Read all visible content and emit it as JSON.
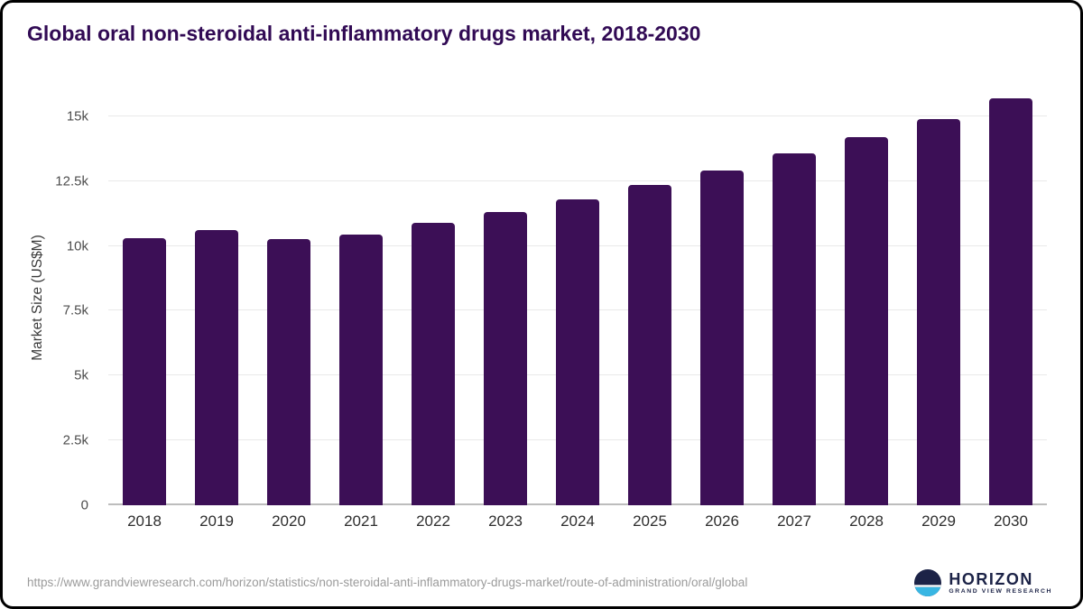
{
  "title": "Global oral non-steroidal anti-inflammatory drugs market, 2018-2030",
  "chart_data": {
    "type": "bar",
    "categories": [
      "2018",
      "2019",
      "2020",
      "2021",
      "2022",
      "2023",
      "2024",
      "2025",
      "2026",
      "2027",
      "2028",
      "2029",
      "2030"
    ],
    "values": [
      10300,
      10600,
      10250,
      10450,
      10900,
      11300,
      11800,
      12350,
      12900,
      13550,
      14200,
      14900,
      15700
    ],
    "title": "Global oral non-steroidal anti-inflammatory drugs market, 2018-2030",
    "xlabel": "",
    "ylabel": "Market Size (US$M)",
    "ylim": [
      0,
      16000
    ],
    "yticks": [
      0,
      2500,
      5000,
      7500,
      10000,
      12500,
      15000
    ],
    "ytick_labels": [
      "0",
      "2.5k",
      "5k",
      "7.5k",
      "10k",
      "12.5k",
      "15k"
    ],
    "bar_color": "#3c0f56",
    "grid": true,
    "legend": "none"
  },
  "footer": {
    "source_url": "https://www.grandviewresearch.com/horizon/statistics/non-steroidal-anti-inflammatory-drugs-market/route-of-administration/oral/global",
    "logo": {
      "name": "HORIZON",
      "subtitle": "GRAND VIEW RESEARCH"
    }
  },
  "colors": {
    "bar": "#3c0f56",
    "title": "#310a54",
    "logo_dark": "#1c2347",
    "logo_blue": "#38b6e3"
  }
}
